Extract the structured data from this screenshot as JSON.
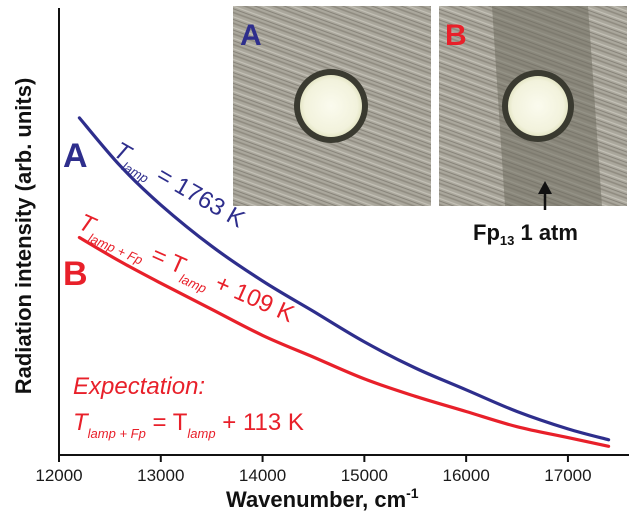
{
  "chart_data": {
    "type": "line",
    "xlabel": "Wavenumber, cm",
    "xlabel_sup": "-1",
    "ylabel": "Radiation intensity (arb. units)",
    "xlim": [
      12000,
      17600
    ],
    "ylim": [
      0,
      1
    ],
    "x_ticks": [
      "12000",
      "13000",
      "14000",
      "15000",
      "16000",
      "17000"
    ],
    "x_tick_values": [
      12000,
      13000,
      14000,
      15000,
      16000,
      17000
    ],
    "colors": {
      "blue": "#2e2e8c",
      "red": "#e8202a"
    },
    "series": [
      {
        "name": "A",
        "color": "#2e2e8c",
        "x": [
          12200,
          12600,
          13000,
          13500,
          14000,
          14500,
          15000,
          15500,
          16000,
          16500,
          17000,
          17400
        ],
        "y": [
          0.775,
          0.665,
          0.575,
          0.48,
          0.4,
          0.33,
          0.26,
          0.2,
          0.15,
          0.1,
          0.06,
          0.035
        ]
      },
      {
        "name": "B",
        "color": "#e8202a",
        "x": [
          12200,
          12600,
          13000,
          13500,
          14000,
          14500,
          15000,
          15500,
          16000,
          16500,
          17000,
          17400
        ],
        "y": [
          0.5,
          0.445,
          0.395,
          0.335,
          0.275,
          0.225,
          0.175,
          0.135,
          0.1,
          0.065,
          0.04,
          0.02
        ]
      }
    ],
    "annotations": {
      "label_a": "A",
      "label_b": "B",
      "curve_a": {
        "T": "T",
        "sub": "lamp",
        "rest": " = 1763 K"
      },
      "curve_b": {
        "T": "T",
        "sub": "lamp + Fp",
        "eq": " = T",
        "sub2": "lamp",
        "rest": " + 109 K"
      },
      "expectation_title": "Expectation:",
      "expectation_line": {
        "T": "T",
        "sub": "lamp + Fp",
        "eq": " = T",
        "sub2": "lamp",
        "rest": " + 113 K"
      }
    },
    "insets": [
      {
        "label": "A",
        "color": "#2e2e8c"
      },
      {
        "label": "B",
        "color": "#e8202a"
      }
    ],
    "inset_note": {
      "main": "Fp",
      "sub": "13",
      "rest": " 1 atm"
    }
  }
}
